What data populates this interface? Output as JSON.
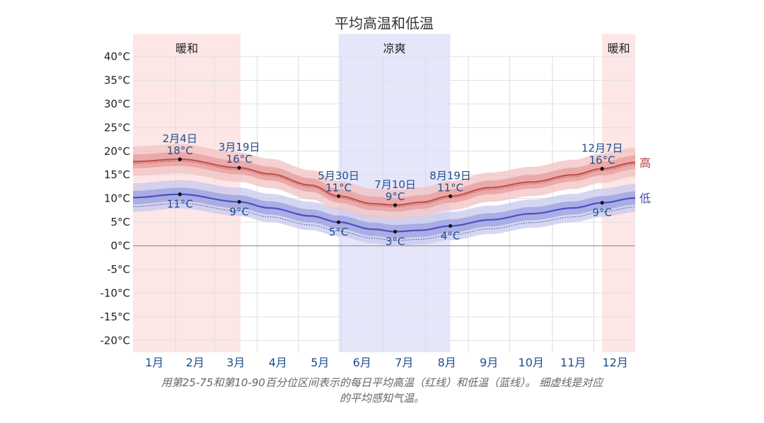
{
  "chart_data": {
    "type": "area",
    "title": "平均高温和低温",
    "xlabel": "",
    "ylabel": "",
    "ylim": [
      -22.5,
      40
    ],
    "yticks": [
      40,
      35,
      30,
      25,
      20,
      15,
      10,
      5,
      0,
      -5,
      -10,
      -15,
      -20
    ],
    "ytick_labels": [
      "40°C",
      "35°C",
      "30°C",
      "25°C",
      "20°C",
      "15°C",
      "10°C",
      "5°C",
      "0°C",
      "-5°C",
      "-10°C",
      "-15°C",
      "-20°C"
    ],
    "months": [
      "1月",
      "2月",
      "3月",
      "4月",
      "5月",
      "6月",
      "7月",
      "8月",
      "9月",
      "10月",
      "11月",
      "12月"
    ],
    "x_unit": "day_of_year",
    "seasons": [
      {
        "label": "暖和",
        "start_day": 1,
        "end_day": 79,
        "color": "#fde6e6"
      },
      {
        "label": "凉爽",
        "start_day": 150,
        "end_day": 231,
        "color": "#e6e6fb"
      },
      {
        "label": "暖和",
        "start_day": 341,
        "end_day": 365,
        "color": "#fde6e6"
      }
    ],
    "series": [
      {
        "name": "高",
        "color": "#c0504d",
        "x": [
          1,
          35,
          78,
          100,
          130,
          150,
          175,
          191,
          210,
          231,
          260,
          290,
          320,
          341,
          365
        ],
        "values": [
          17.8,
          18.3,
          16.5,
          15.2,
          12.8,
          10.5,
          8.9,
          8.6,
          9.2,
          10.5,
          12.3,
          13.5,
          15.0,
          16.3,
          17.6
        ]
      },
      {
        "name": "低",
        "color": "#4b4fc4",
        "x": [
          1,
          35,
          78,
          100,
          130,
          150,
          175,
          191,
          210,
          231,
          260,
          290,
          320,
          341,
          365
        ],
        "values": [
          10.2,
          10.9,
          9.3,
          8.0,
          6.3,
          5.0,
          3.5,
          3.0,
          3.3,
          4.2,
          5.5,
          6.8,
          8.0,
          9.1,
          10.1
        ]
      }
    ],
    "annotations": [
      {
        "date": "2月4日",
        "value_label": "18°C",
        "x": 35,
        "y": 18.3,
        "series": "高"
      },
      {
        "date": "",
        "value_label": "11°C",
        "x": 35,
        "y": 10.9,
        "series": "低"
      },
      {
        "date": "3月19日",
        "value_label": "16°C",
        "x": 78,
        "y": 16.5,
        "series": "高"
      },
      {
        "date": "",
        "value_label": "9°C",
        "x": 78,
        "y": 9.3,
        "series": "低"
      },
      {
        "date": "5月30日",
        "value_label": "11°C",
        "x": 150,
        "y": 10.5,
        "series": "高"
      },
      {
        "date": "",
        "value_label": "5°C",
        "x": 150,
        "y": 5.0,
        "series": "低"
      },
      {
        "date": "7月10日",
        "value_label": "9°C",
        "x": 191,
        "y": 8.6,
        "series": "高"
      },
      {
        "date": "",
        "value_label": "3°C",
        "x": 191,
        "y": 3.0,
        "series": "低"
      },
      {
        "date": "8月19日",
        "value_label": "11°C",
        "x": 231,
        "y": 10.5,
        "series": "高"
      },
      {
        "date": "",
        "value_label": "4°C",
        "x": 231,
        "y": 4.2,
        "series": "低"
      },
      {
        "date": "12月7日",
        "value_label": "16°C",
        "x": 341,
        "y": 16.3,
        "series": "高"
      },
      {
        "date": "",
        "value_label": "9°C",
        "x": 341,
        "y": 9.1,
        "series": "低"
      }
    ],
    "grid": true,
    "legend": "right-end labels"
  },
  "caption_line1": "用第25-75和第10-90百分位区间表示的每日平均高温（红线）和低温（蓝线）。 细虚线是对应",
  "caption_line2": "的平均感知气温。"
}
